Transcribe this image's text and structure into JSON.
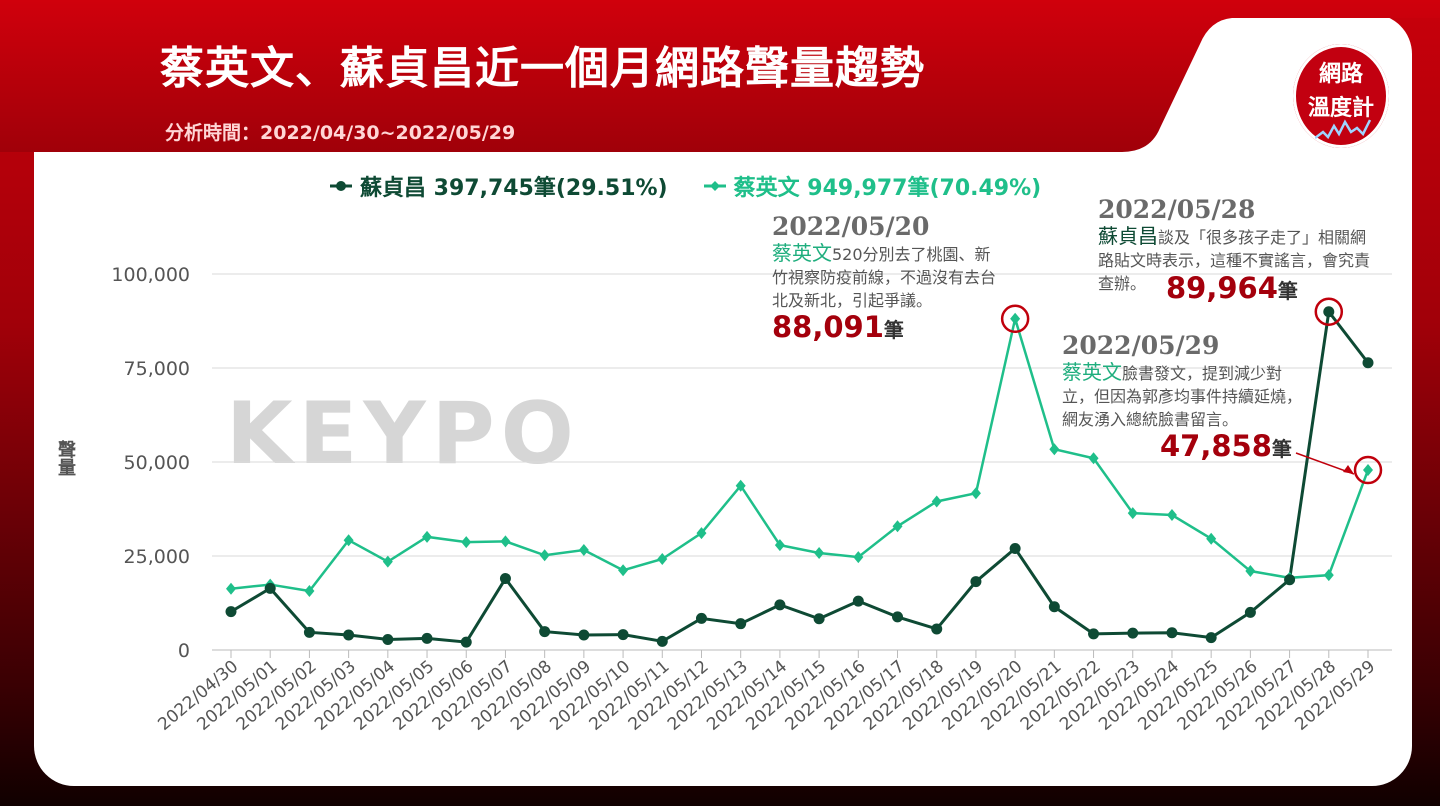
{
  "header": {
    "title": "蔡英文、蘇貞昌近一個月網路聲量趨勢",
    "subtitle": "分析時間：2022/04/30~2022/05/29",
    "badge_line1": "網路",
    "badge_line2": "溫度計"
  },
  "watermark": "KEYPO",
  "colors": {
    "dark": "#0e4a34",
    "green": "#1fbf8a",
    "accent": "#a4000c"
  },
  "chart_data": {
    "type": "line",
    "ylabel": "聲量",
    "ylim": [
      0,
      110000
    ],
    "yticks": [
      0,
      25000,
      50000,
      75000,
      100000
    ],
    "ytick_labels": [
      "0",
      "25,000",
      "50,000",
      "75,000",
      "100,000"
    ],
    "categories": [
      "2022/04/30",
      "2022/05/01",
      "2022/05/02",
      "2022/05/03",
      "2022/05/04",
      "2022/05/05",
      "2022/05/06",
      "2022/05/07",
      "2022/05/08",
      "2022/05/09",
      "2022/05/10",
      "2022/05/11",
      "2022/05/12",
      "2022/05/13",
      "2022/05/14",
      "2022/05/15",
      "2022/05/16",
      "2022/05/17",
      "2022/05/18",
      "2022/05/19",
      "2022/05/20",
      "2022/05/21",
      "2022/05/22",
      "2022/05/23",
      "2022/05/24",
      "2022/05/25",
      "2022/05/26",
      "2022/05/27",
      "2022/05/28",
      "2022/05/29"
    ],
    "series": [
      {
        "name": "蘇貞昌",
        "legend_label": "蘇貞昌 397,745筆(29.51%)",
        "color": "#0e4a34",
        "values": [
          10200,
          16400,
          4700,
          4000,
          2800,
          3100,
          2100,
          19000,
          4900,
          4000,
          4100,
          2300,
          8400,
          7000,
          12000,
          8300,
          13000,
          8800,
          5600,
          18200,
          27000,
          11500,
          4300,
          4500,
          4600,
          3300,
          10000,
          18700,
          89964,
          76400
        ]
      },
      {
        "name": "蔡英文",
        "legend_label": "蔡英文 949,977筆(70.49%)",
        "color": "#1fbf8a",
        "values": [
          16300,
          17400,
          15700,
          29200,
          23500,
          30100,
          28700,
          28900,
          25200,
          26600,
          21200,
          24200,
          31100,
          43700,
          27900,
          25800,
          24700,
          32900,
          39500,
          41700,
          88091,
          53400,
          51000,
          36400,
          35900,
          29600,
          21000,
          19200,
          19900,
          47858
        ]
      }
    ],
    "annotations": [
      {
        "date": "2022/05/20",
        "who": "蔡英文",
        "text_lines": [
          "520分別去了桃園、新",
          "竹視察防疫前線，不過沒有去台",
          "北及新北，引起爭議。"
        ],
        "value_label": "88,091",
        "unit": "筆"
      },
      {
        "date": "2022/05/28",
        "who": "蘇貞昌",
        "text_lines": [
          "談及「很多孩子走了」相關網",
          "路貼文時表示，這種不實謠言，會究責",
          "查辦。"
        ],
        "value_label": "89,964",
        "unit": "筆"
      },
      {
        "date": "2022/05/29",
        "who": "蔡英文",
        "text_lines": [
          "臉書發文，提到減少對",
          "立，但因為郭彥均事件持續延燒，",
          "網友湧入總統臉書留言。"
        ],
        "value_label": "47,858",
        "unit": "筆"
      }
    ]
  }
}
